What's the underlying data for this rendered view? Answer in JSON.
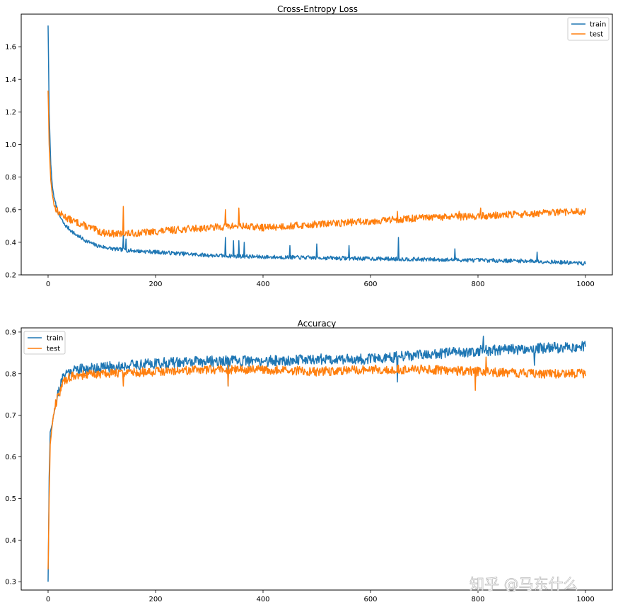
{
  "colors": {
    "train": "#1f77b4",
    "test": "#ff7f0e",
    "axes": "#000000"
  },
  "watermark": "知乎 @马东什么",
  "chart_data": [
    {
      "type": "line",
      "title": "Cross-Entropy Loss",
      "xlabel": "",
      "ylabel": "",
      "xlim": [
        -50,
        1050
      ],
      "ylim": [
        0.2,
        1.8
      ],
      "xticks": [
        0,
        200,
        400,
        600,
        800,
        1000
      ],
      "yticks": [
        0.2,
        0.4,
        0.6,
        0.8,
        1.0,
        1.2,
        1.4,
        1.6
      ],
      "legend": "top-right",
      "series": [
        {
          "name": "train",
          "key": "train",
          "anchors": [
            [
              0,
              1.73
            ],
            [
              2,
              1.2
            ],
            [
              5,
              0.88
            ],
            [
              8,
              0.74
            ],
            [
              12,
              0.66
            ],
            [
              20,
              0.57
            ],
            [
              30,
              0.51
            ],
            [
              50,
              0.45
            ],
            [
              70,
              0.41
            ],
            [
              90,
              0.38
            ],
            [
              120,
              0.36
            ],
            [
              150,
              0.35
            ],
            [
              200,
              0.34
            ],
            [
              300,
              0.32
            ],
            [
              400,
              0.31
            ],
            [
              500,
              0.305
            ],
            [
              600,
              0.3
            ],
            [
              700,
              0.295
            ],
            [
              800,
              0.29
            ],
            [
              900,
              0.285
            ],
            [
              1000,
              0.27
            ]
          ],
          "noise": 0.012,
          "spikes": [
            [
              140,
              0.44
            ],
            [
              145,
              0.42
            ],
            [
              330,
              0.43
            ],
            [
              345,
              0.41
            ],
            [
              355,
              0.41
            ],
            [
              365,
              0.4
            ],
            [
              450,
              0.38
            ],
            [
              500,
              0.39
            ],
            [
              560,
              0.38
            ],
            [
              652,
              0.43
            ],
            [
              757,
              0.36
            ],
            [
              910,
              0.34
            ]
          ],
          "seed": 7
        },
        {
          "name": "test",
          "key": "test",
          "anchors": [
            [
              0,
              1.33
            ],
            [
              2,
              1.0
            ],
            [
              5,
              0.78
            ],
            [
              8,
              0.69
            ],
            [
              12,
              0.62
            ],
            [
              20,
              0.58
            ],
            [
              40,
              0.54
            ],
            [
              70,
              0.5
            ],
            [
              100,
              0.46
            ],
            [
              130,
              0.45
            ],
            [
              160,
              0.455
            ],
            [
              200,
              0.465
            ],
            [
              250,
              0.48
            ],
            [
              300,
              0.49
            ],
            [
              350,
              0.5
            ],
            [
              400,
              0.49
            ],
            [
              500,
              0.51
            ],
            [
              600,
              0.53
            ],
            [
              700,
              0.55
            ],
            [
              800,
              0.56
            ],
            [
              900,
              0.575
            ],
            [
              1000,
              0.59
            ]
          ],
          "noise": 0.022,
          "spikes": [
            [
              140,
              0.62
            ],
            [
              330,
              0.6
            ],
            [
              355,
              0.61
            ],
            [
              650,
              0.59
            ],
            [
              765,
              0.59
            ],
            [
              805,
              0.61
            ],
            [
              940,
              0.6
            ]
          ],
          "seed": 13
        }
      ]
    },
    {
      "type": "line",
      "title": "Accuracy",
      "xlabel": "",
      "ylabel": "",
      "xlim": [
        -50,
        1050
      ],
      "ylim": [
        0.28,
        0.91
      ],
      "xticks": [
        0,
        200,
        400,
        600,
        800,
        1000
      ],
      "yticks": [
        0.3,
        0.4,
        0.5,
        0.6,
        0.7,
        0.8,
        0.9
      ],
      "legend": "top-left",
      "series": [
        {
          "name": "train",
          "key": "train",
          "anchors": [
            [
              0,
              0.3
            ],
            [
              2,
              0.55
            ],
            [
              4,
              0.66
            ],
            [
              8,
              0.68
            ],
            [
              12,
              0.72
            ],
            [
              20,
              0.76
            ],
            [
              30,
              0.8
            ],
            [
              50,
              0.81
            ],
            [
              100,
              0.815
            ],
            [
              200,
              0.825
            ],
            [
              300,
              0.83
            ],
            [
              400,
              0.83
            ],
            [
              500,
              0.835
            ],
            [
              600,
              0.835
            ],
            [
              700,
              0.845
            ],
            [
              800,
              0.855
            ],
            [
              900,
              0.86
            ],
            [
              1000,
              0.865
            ]
          ],
          "noise": 0.013,
          "spikes": [
            [
              335,
              0.77
            ],
            [
              650,
              0.78
            ],
            [
              810,
              0.89
            ],
            [
              905,
              0.82
            ]
          ],
          "seed": 21
        },
        {
          "name": "test",
          "key": "test",
          "anchors": [
            [
              0,
              0.33
            ],
            [
              2,
              0.5
            ],
            [
              4,
              0.63
            ],
            [
              8,
              0.68
            ],
            [
              12,
              0.72
            ],
            [
              20,
              0.75
            ],
            [
              30,
              0.785
            ],
            [
              50,
              0.795
            ],
            [
              100,
              0.8
            ],
            [
              200,
              0.805
            ],
            [
              300,
              0.81
            ],
            [
              400,
              0.81
            ],
            [
              500,
              0.805
            ],
            [
              600,
              0.81
            ],
            [
              700,
              0.81
            ],
            [
              800,
              0.805
            ],
            [
              900,
              0.8
            ],
            [
              1000,
              0.8
            ]
          ],
          "noise": 0.011,
          "spikes": [
            [
              140,
              0.77
            ],
            [
              335,
              0.77
            ],
            [
              795,
              0.76
            ],
            [
              815,
              0.84
            ]
          ],
          "seed": 34
        }
      ]
    }
  ]
}
